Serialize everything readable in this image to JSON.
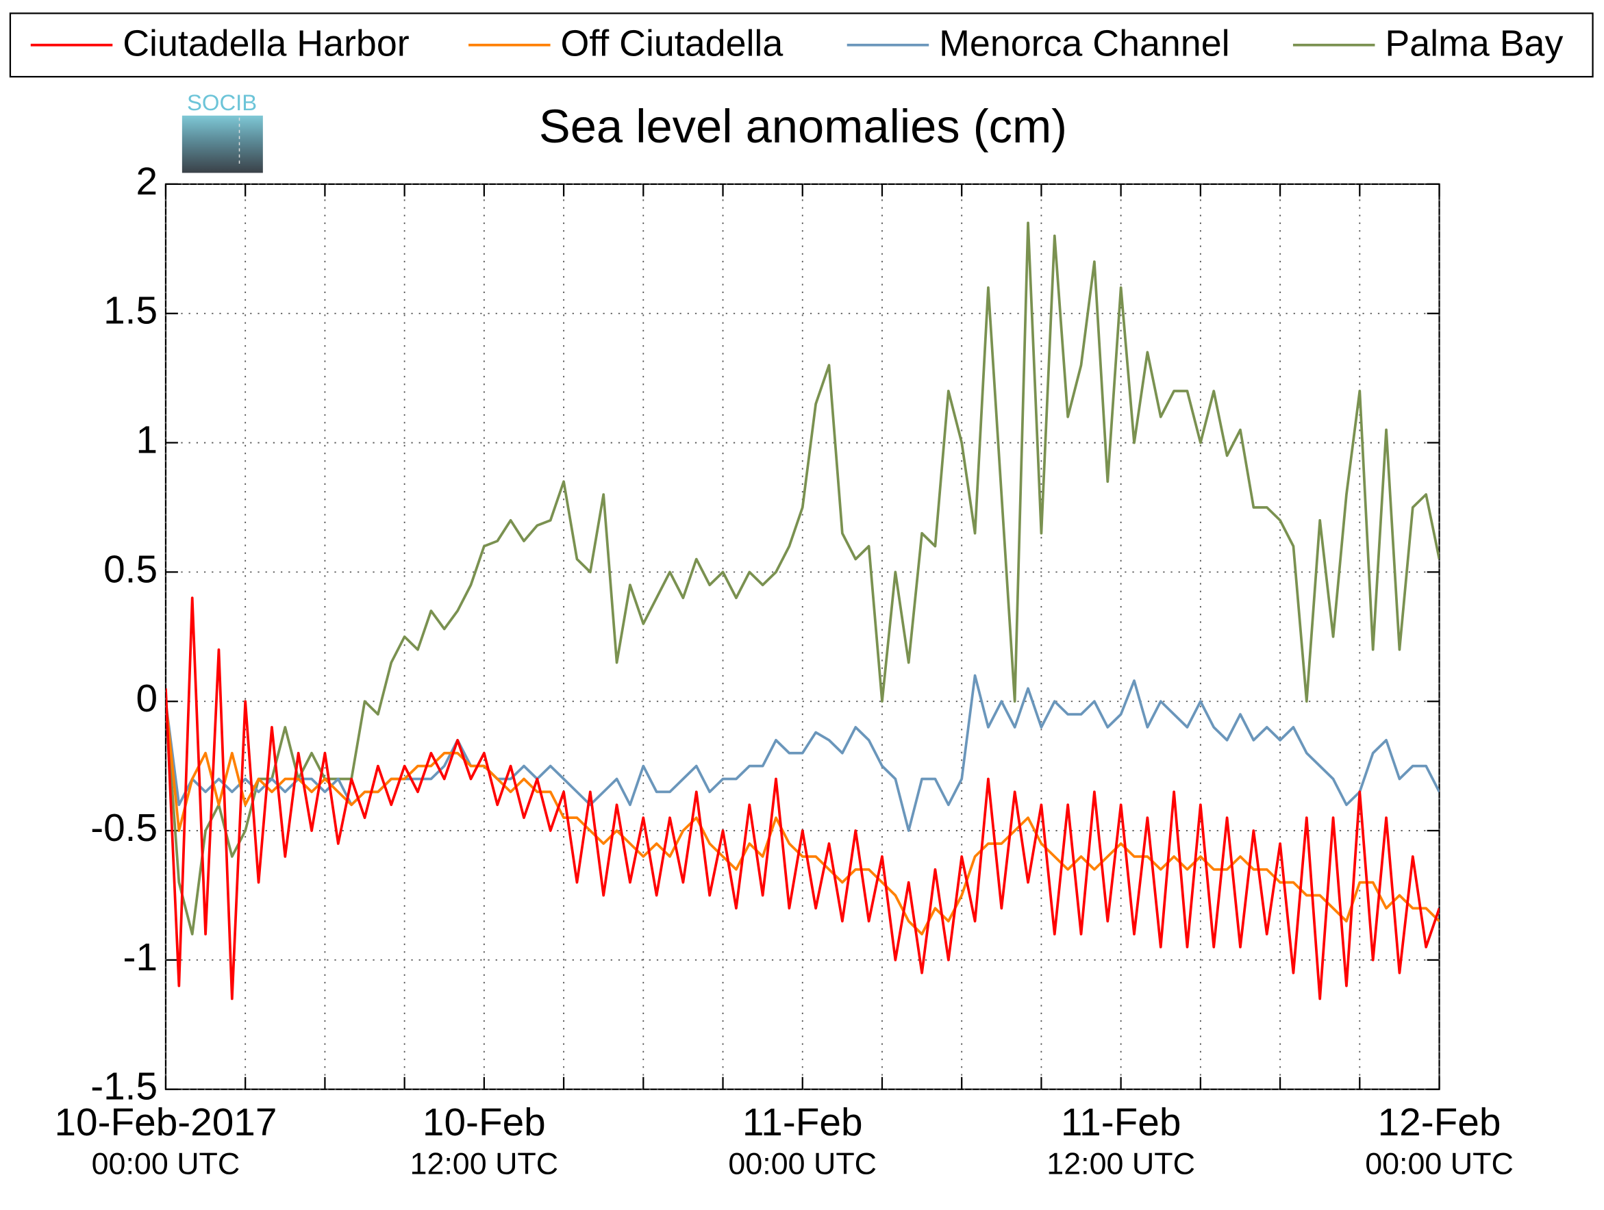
{
  "chart_data": {
    "type": "line",
    "title": "Sea level anomalies (cm)",
    "logo": "SOCIB",
    "x": [
      "2017-02-10T00:00",
      "2017-02-10T00:30",
      "2017-02-10T01:00",
      "2017-02-10T01:30",
      "2017-02-10T02:00",
      "2017-02-10T02:30",
      "2017-02-10T03:00",
      "2017-02-10T03:30",
      "2017-02-10T04:00",
      "2017-02-10T04:30",
      "2017-02-10T05:00",
      "2017-02-10T05:30",
      "2017-02-10T06:00",
      "2017-02-10T06:30",
      "2017-02-10T07:00",
      "2017-02-10T07:30",
      "2017-02-10T08:00",
      "2017-02-10T08:30",
      "2017-02-10T09:00",
      "2017-02-10T09:30",
      "2017-02-10T10:00",
      "2017-02-10T10:30",
      "2017-02-10T11:00",
      "2017-02-10T11:30",
      "2017-02-10T12:00",
      "2017-02-10T12:30",
      "2017-02-10T13:00",
      "2017-02-10T13:30",
      "2017-02-10T14:00",
      "2017-02-10T14:30",
      "2017-02-10T15:00",
      "2017-02-10T15:30",
      "2017-02-10T16:00",
      "2017-02-10T16:30",
      "2017-02-10T17:00",
      "2017-02-10T17:30",
      "2017-02-10T18:00",
      "2017-02-10T18:30",
      "2017-02-10T19:00",
      "2017-02-10T19:30",
      "2017-02-10T20:00",
      "2017-02-10T20:30",
      "2017-02-10T21:00",
      "2017-02-10T21:30",
      "2017-02-10T22:00",
      "2017-02-10T22:30",
      "2017-02-10T23:00",
      "2017-02-10T23:30",
      "2017-02-11T00:00",
      "2017-02-11T00:30",
      "2017-02-11T01:00",
      "2017-02-11T01:30",
      "2017-02-11T02:00",
      "2017-02-11T02:30",
      "2017-02-11T03:00",
      "2017-02-11T03:30",
      "2017-02-11T04:00",
      "2017-02-11T04:30",
      "2017-02-11T05:00",
      "2017-02-11T05:30",
      "2017-02-11T06:00",
      "2017-02-11T06:30",
      "2017-02-11T07:00",
      "2017-02-11T07:30",
      "2017-02-11T08:00",
      "2017-02-11T08:30",
      "2017-02-11T09:00",
      "2017-02-11T09:30",
      "2017-02-11T10:00",
      "2017-02-11T10:30",
      "2017-02-11T11:00",
      "2017-02-11T11:30",
      "2017-02-11T12:00",
      "2017-02-11T12:30",
      "2017-02-11T13:00",
      "2017-02-11T13:30",
      "2017-02-11T14:00",
      "2017-02-11T14:30",
      "2017-02-11T15:00",
      "2017-02-11T15:30",
      "2017-02-11T16:00",
      "2017-02-11T16:30",
      "2017-02-11T17:00",
      "2017-02-11T17:30",
      "2017-02-11T18:00",
      "2017-02-11T18:30",
      "2017-02-11T19:00",
      "2017-02-11T19:30",
      "2017-02-11T20:00",
      "2017-02-11T20:30",
      "2017-02-11T21:00",
      "2017-02-11T21:30",
      "2017-02-11T22:00",
      "2017-02-11T22:30",
      "2017-02-11T23:00",
      "2017-02-11T23:30",
      "2017-02-12T00:00"
    ],
    "series": [
      {
        "name": "Ciutadella Harbor",
        "color": "#ff0000",
        "values": [
          0.05,
          -1.1,
          0.4,
          -0.9,
          0.2,
          -1.15,
          0.0,
          -0.7,
          -0.1,
          -0.6,
          -0.2,
          -0.5,
          -0.2,
          -0.55,
          -0.3,
          -0.45,
          -0.25,
          -0.4,
          -0.25,
          -0.35,
          -0.2,
          -0.3,
          -0.15,
          -0.3,
          -0.2,
          -0.4,
          -0.25,
          -0.45,
          -0.3,
          -0.5,
          -0.35,
          -0.7,
          -0.35,
          -0.75,
          -0.4,
          -0.7,
          -0.45,
          -0.75,
          -0.45,
          -0.7,
          -0.35,
          -0.75,
          -0.5,
          -0.8,
          -0.4,
          -0.75,
          -0.3,
          -0.8,
          -0.5,
          -0.8,
          -0.55,
          -0.85,
          -0.5,
          -0.85,
          -0.6,
          -1.0,
          -0.7,
          -1.05,
          -0.65,
          -1.0,
          -0.6,
          -0.85,
          -0.3,
          -0.8,
          -0.35,
          -0.7,
          -0.4,
          -0.9,
          -0.4,
          -0.9,
          -0.35,
          -0.85,
          -0.4,
          -0.9,
          -0.45,
          -0.95,
          -0.35,
          -0.95,
          -0.4,
          -0.95,
          -0.45,
          -0.95,
          -0.5,
          -0.9,
          -0.55,
          -1.05,
          -0.45,
          -1.15,
          -0.45,
          -1.1,
          -0.35,
          -1.0,
          -0.45,
          -1.05,
          -0.6,
          -0.95,
          -0.8
        ]
      },
      {
        "name": "Off Ciutadella",
        "color": "#ff8000",
        "values": [
          0.0,
          -0.5,
          -0.3,
          -0.2,
          -0.4,
          -0.2,
          -0.4,
          -0.3,
          -0.35,
          -0.3,
          -0.3,
          -0.35,
          -0.3,
          -0.35,
          -0.4,
          -0.35,
          -0.35,
          -0.3,
          -0.3,
          -0.25,
          -0.25,
          -0.2,
          -0.2,
          -0.25,
          -0.25,
          -0.3,
          -0.35,
          -0.3,
          -0.35,
          -0.35,
          -0.45,
          -0.45,
          -0.5,
          -0.55,
          -0.5,
          -0.55,
          -0.6,
          -0.55,
          -0.6,
          -0.5,
          -0.45,
          -0.55,
          -0.6,
          -0.65,
          -0.55,
          -0.6,
          -0.45,
          -0.55,
          -0.6,
          -0.6,
          -0.65,
          -0.7,
          -0.65,
          -0.65,
          -0.7,
          -0.75,
          -0.85,
          -0.9,
          -0.8,
          -0.85,
          -0.75,
          -0.6,
          -0.55,
          -0.55,
          -0.5,
          -0.45,
          -0.55,
          -0.6,
          -0.65,
          -0.6,
          -0.65,
          -0.6,
          -0.55,
          -0.6,
          -0.6,
          -0.65,
          -0.6,
          -0.65,
          -0.6,
          -0.65,
          -0.65,
          -0.6,
          -0.65,
          -0.65,
          -0.7,
          -0.7,
          -0.75,
          -0.75,
          -0.8,
          -0.85,
          -0.7,
          -0.7,
          -0.8,
          -0.75,
          -0.8,
          -0.8,
          -0.85
        ]
      },
      {
        "name": "Menorca Channel",
        "color": "#6a96bb",
        "values": [
          0.0,
          -0.4,
          -0.3,
          -0.35,
          -0.3,
          -0.35,
          -0.3,
          -0.35,
          -0.3,
          -0.35,
          -0.3,
          -0.3,
          -0.35,
          -0.3,
          -0.4,
          -0.35,
          -0.35,
          -0.3,
          -0.3,
          -0.3,
          -0.3,
          -0.25,
          -0.15,
          -0.25,
          -0.25,
          -0.3,
          -0.3,
          -0.25,
          -0.3,
          -0.25,
          -0.3,
          -0.35,
          -0.4,
          -0.35,
          -0.3,
          -0.4,
          -0.25,
          -0.35,
          -0.35,
          -0.3,
          -0.25,
          -0.35,
          -0.3,
          -0.3,
          -0.25,
          -0.25,
          -0.15,
          -0.2,
          -0.2,
          -0.12,
          -0.15,
          -0.2,
          -0.1,
          -0.15,
          -0.25,
          -0.3,
          -0.5,
          -0.3,
          -0.3,
          -0.4,
          -0.3,
          0.1,
          -0.1,
          0.0,
          -0.1,
          0.05,
          -0.1,
          0.0,
          -0.05,
          -0.05,
          0.0,
          -0.1,
          -0.05,
          0.08,
          -0.1,
          0.0,
          -0.05,
          -0.1,
          0.0,
          -0.1,
          -0.15,
          -0.05,
          -0.15,
          -0.1,
          -0.15,
          -0.1,
          -0.2,
          -0.25,
          -0.3,
          -0.4,
          -0.35,
          -0.2,
          -0.15,
          -0.3,
          -0.25,
          -0.25,
          -0.35
        ]
      },
      {
        "name": "Palma Bay",
        "color": "#7a9150",
        "values": [
          0.0,
          -0.7,
          -0.9,
          -0.5,
          -0.4,
          -0.6,
          -0.5,
          -0.3,
          -0.3,
          -0.1,
          -0.3,
          -0.2,
          -0.3,
          -0.3,
          -0.3,
          0.0,
          -0.05,
          0.15,
          0.25,
          0.2,
          0.35,
          0.28,
          0.35,
          0.45,
          0.6,
          0.62,
          0.7,
          0.62,
          0.68,
          0.7,
          0.85,
          0.55,
          0.5,
          0.8,
          0.15,
          0.45,
          0.3,
          0.4,
          0.5,
          0.4,
          0.55,
          0.45,
          0.5,
          0.4,
          0.5,
          0.45,
          0.5,
          0.6,
          0.75,
          1.15,
          1.3,
          0.65,
          0.55,
          0.6,
          0.0,
          0.5,
          0.15,
          0.65,
          0.6,
          1.2,
          1.0,
          0.65,
          1.6,
          0.8,
          0.0,
          1.85,
          0.65,
          1.8,
          1.1,
          1.3,
          1.7,
          0.85,
          1.6,
          1.0,
          1.35,
          1.1,
          1.2,
          1.2,
          1.0,
          1.2,
          0.95,
          1.05,
          0.75,
          0.75,
          0.7,
          0.6,
          0.0,
          0.7,
          0.25,
          0.8,
          1.2,
          0.2,
          1.05,
          0.2,
          0.75,
          0.8,
          0.55
        ]
      }
    ],
    "xlim": [
      "2017-02-10T00:00",
      "2017-02-12T00:00"
    ],
    "xticks": [
      {
        "value": "2017-02-10T00:00",
        "label": [
          "10-Feb-2017",
          "00:00 UTC"
        ]
      },
      "2017-02-10T03:00",
      "2017-02-10T06:00",
      "2017-02-10T09:00",
      {
        "value": "2017-02-10T12:00",
        "label": [
          "10-Feb",
          "12:00 UTC"
        ]
      },
      "2017-02-10T15:00",
      "2017-02-10T18:00",
      "2017-02-10T21:00",
      {
        "value": "2017-02-11T00:00",
        "label": [
          "11-Feb",
          "00:00 UTC"
        ]
      },
      "2017-02-11T03:00",
      "2017-02-11T06:00",
      "2017-02-11T09:00",
      {
        "value": "2017-02-11T12:00",
        "label": [
          "11-Feb",
          "12:00 UTC"
        ]
      },
      "2017-02-11T15:00",
      "2017-02-11T18:00",
      "2017-02-11T21:00",
      {
        "value": "2017-02-12T00:00",
        "label": [
          "12-Feb",
          "00:00 UTC"
        ]
      }
    ],
    "ylim": [
      -1.5,
      2
    ],
    "yticks": [
      -1.5,
      -1,
      -0.5,
      0,
      0.5,
      1,
      1.5,
      2
    ],
    "grid": true,
    "legend": "top"
  }
}
